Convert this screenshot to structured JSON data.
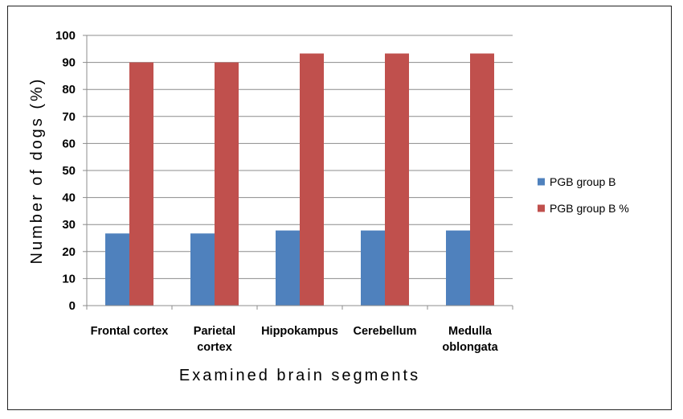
{
  "chart_data": {
    "type": "bar",
    "categories": [
      [
        "Frontal cortex"
      ],
      [
        "Parietal",
        "cortex"
      ],
      [
        "Hippokampus"
      ],
      [
        "Cerebellum"
      ],
      [
        "Medulla",
        "oblongata"
      ]
    ],
    "series": [
      {
        "name": "PGB group B",
        "color": "#4f81bd",
        "values": [
          26.7,
          26.7,
          27.8,
          27.8,
          27.8
        ]
      },
      {
        "name": "PGB group B %",
        "color": "#c0504d",
        "values": [
          90,
          90,
          93.3,
          93.3,
          93.3
        ]
      }
    ],
    "xlabel": "Examined brain segments",
    "ylabel": "Number of dogs (%)",
    "ylim": [
      0,
      100
    ],
    "yticks": [
      0,
      10,
      20,
      30,
      40,
      50,
      60,
      70,
      80,
      90,
      100
    ],
    "grid": true,
    "legend": "right"
  }
}
